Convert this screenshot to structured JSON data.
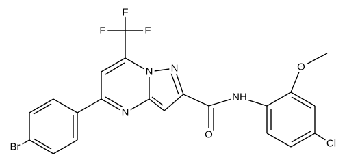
{
  "atoms": [
    {
      "label": "F"
    },
    {
      "label": "F"
    },
    {
      "label": "F"
    },
    {
      "label": "N"
    },
    {
      "label": "N"
    },
    {
      "label": "N"
    },
    {
      "label": "O"
    },
    {
      "label": "NH"
    },
    {
      "label": "O"
    },
    {
      "label": "Cl"
    },
    {
      "label": "Br"
    }
  ]
}
